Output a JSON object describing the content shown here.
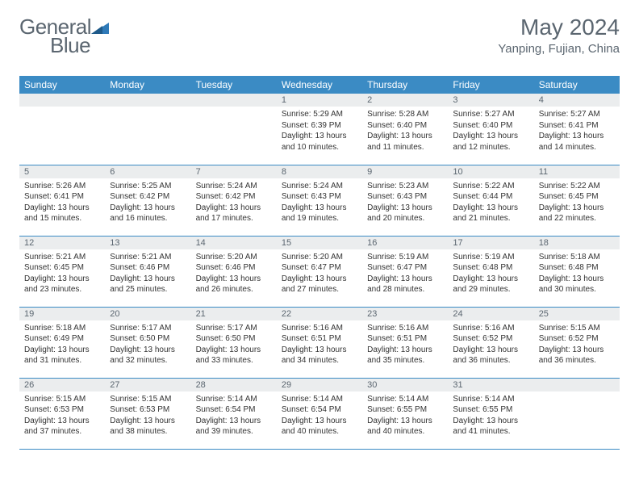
{
  "brand": {
    "part1": "General",
    "part2": "Blue"
  },
  "colors": {
    "header_bg": "#3b8bc4",
    "header_text": "#ffffff",
    "daynum_bg": "#ebedee",
    "text_muted": "#5b6670",
    "border": "#3b8bc4",
    "body_text": "#333333",
    "logo_blue": "#2f7ab8"
  },
  "title": "May 2024",
  "location": "Yanping, Fujian, China",
  "weekdays": [
    "Sunday",
    "Monday",
    "Tuesday",
    "Wednesday",
    "Thursday",
    "Friday",
    "Saturday"
  ],
  "weeks": [
    [
      {
        "n": "",
        "sr": "",
        "ss": "",
        "dl": ""
      },
      {
        "n": "",
        "sr": "",
        "ss": "",
        "dl": ""
      },
      {
        "n": "",
        "sr": "",
        "ss": "",
        "dl": ""
      },
      {
        "n": "1",
        "sr": "Sunrise: 5:29 AM",
        "ss": "Sunset: 6:39 PM",
        "dl": "Daylight: 13 hours and 10 minutes."
      },
      {
        "n": "2",
        "sr": "Sunrise: 5:28 AM",
        "ss": "Sunset: 6:40 PM",
        "dl": "Daylight: 13 hours and 11 minutes."
      },
      {
        "n": "3",
        "sr": "Sunrise: 5:27 AM",
        "ss": "Sunset: 6:40 PM",
        "dl": "Daylight: 13 hours and 12 minutes."
      },
      {
        "n": "4",
        "sr": "Sunrise: 5:27 AM",
        "ss": "Sunset: 6:41 PM",
        "dl": "Daylight: 13 hours and 14 minutes."
      }
    ],
    [
      {
        "n": "5",
        "sr": "Sunrise: 5:26 AM",
        "ss": "Sunset: 6:41 PM",
        "dl": "Daylight: 13 hours and 15 minutes."
      },
      {
        "n": "6",
        "sr": "Sunrise: 5:25 AM",
        "ss": "Sunset: 6:42 PM",
        "dl": "Daylight: 13 hours and 16 minutes."
      },
      {
        "n": "7",
        "sr": "Sunrise: 5:24 AM",
        "ss": "Sunset: 6:42 PM",
        "dl": "Daylight: 13 hours and 17 minutes."
      },
      {
        "n": "8",
        "sr": "Sunrise: 5:24 AM",
        "ss": "Sunset: 6:43 PM",
        "dl": "Daylight: 13 hours and 19 minutes."
      },
      {
        "n": "9",
        "sr": "Sunrise: 5:23 AM",
        "ss": "Sunset: 6:43 PM",
        "dl": "Daylight: 13 hours and 20 minutes."
      },
      {
        "n": "10",
        "sr": "Sunrise: 5:22 AM",
        "ss": "Sunset: 6:44 PM",
        "dl": "Daylight: 13 hours and 21 minutes."
      },
      {
        "n": "11",
        "sr": "Sunrise: 5:22 AM",
        "ss": "Sunset: 6:45 PM",
        "dl": "Daylight: 13 hours and 22 minutes."
      }
    ],
    [
      {
        "n": "12",
        "sr": "Sunrise: 5:21 AM",
        "ss": "Sunset: 6:45 PM",
        "dl": "Daylight: 13 hours and 23 minutes."
      },
      {
        "n": "13",
        "sr": "Sunrise: 5:21 AM",
        "ss": "Sunset: 6:46 PM",
        "dl": "Daylight: 13 hours and 25 minutes."
      },
      {
        "n": "14",
        "sr": "Sunrise: 5:20 AM",
        "ss": "Sunset: 6:46 PM",
        "dl": "Daylight: 13 hours and 26 minutes."
      },
      {
        "n": "15",
        "sr": "Sunrise: 5:20 AM",
        "ss": "Sunset: 6:47 PM",
        "dl": "Daylight: 13 hours and 27 minutes."
      },
      {
        "n": "16",
        "sr": "Sunrise: 5:19 AM",
        "ss": "Sunset: 6:47 PM",
        "dl": "Daylight: 13 hours and 28 minutes."
      },
      {
        "n": "17",
        "sr": "Sunrise: 5:19 AM",
        "ss": "Sunset: 6:48 PM",
        "dl": "Daylight: 13 hours and 29 minutes."
      },
      {
        "n": "18",
        "sr": "Sunrise: 5:18 AM",
        "ss": "Sunset: 6:48 PM",
        "dl": "Daylight: 13 hours and 30 minutes."
      }
    ],
    [
      {
        "n": "19",
        "sr": "Sunrise: 5:18 AM",
        "ss": "Sunset: 6:49 PM",
        "dl": "Daylight: 13 hours and 31 minutes."
      },
      {
        "n": "20",
        "sr": "Sunrise: 5:17 AM",
        "ss": "Sunset: 6:50 PM",
        "dl": "Daylight: 13 hours and 32 minutes."
      },
      {
        "n": "21",
        "sr": "Sunrise: 5:17 AM",
        "ss": "Sunset: 6:50 PM",
        "dl": "Daylight: 13 hours and 33 minutes."
      },
      {
        "n": "22",
        "sr": "Sunrise: 5:16 AM",
        "ss": "Sunset: 6:51 PM",
        "dl": "Daylight: 13 hours and 34 minutes."
      },
      {
        "n": "23",
        "sr": "Sunrise: 5:16 AM",
        "ss": "Sunset: 6:51 PM",
        "dl": "Daylight: 13 hours and 35 minutes."
      },
      {
        "n": "24",
        "sr": "Sunrise: 5:16 AM",
        "ss": "Sunset: 6:52 PM",
        "dl": "Daylight: 13 hours and 36 minutes."
      },
      {
        "n": "25",
        "sr": "Sunrise: 5:15 AM",
        "ss": "Sunset: 6:52 PM",
        "dl": "Daylight: 13 hours and 36 minutes."
      }
    ],
    [
      {
        "n": "26",
        "sr": "Sunrise: 5:15 AM",
        "ss": "Sunset: 6:53 PM",
        "dl": "Daylight: 13 hours and 37 minutes."
      },
      {
        "n": "27",
        "sr": "Sunrise: 5:15 AM",
        "ss": "Sunset: 6:53 PM",
        "dl": "Daylight: 13 hours and 38 minutes."
      },
      {
        "n": "28",
        "sr": "Sunrise: 5:14 AM",
        "ss": "Sunset: 6:54 PM",
        "dl": "Daylight: 13 hours and 39 minutes."
      },
      {
        "n": "29",
        "sr": "Sunrise: 5:14 AM",
        "ss": "Sunset: 6:54 PM",
        "dl": "Daylight: 13 hours and 40 minutes."
      },
      {
        "n": "30",
        "sr": "Sunrise: 5:14 AM",
        "ss": "Sunset: 6:55 PM",
        "dl": "Daylight: 13 hours and 40 minutes."
      },
      {
        "n": "31",
        "sr": "Sunrise: 5:14 AM",
        "ss": "Sunset: 6:55 PM",
        "dl": "Daylight: 13 hours and 41 minutes."
      },
      {
        "n": "",
        "sr": "",
        "ss": "",
        "dl": ""
      }
    ]
  ]
}
